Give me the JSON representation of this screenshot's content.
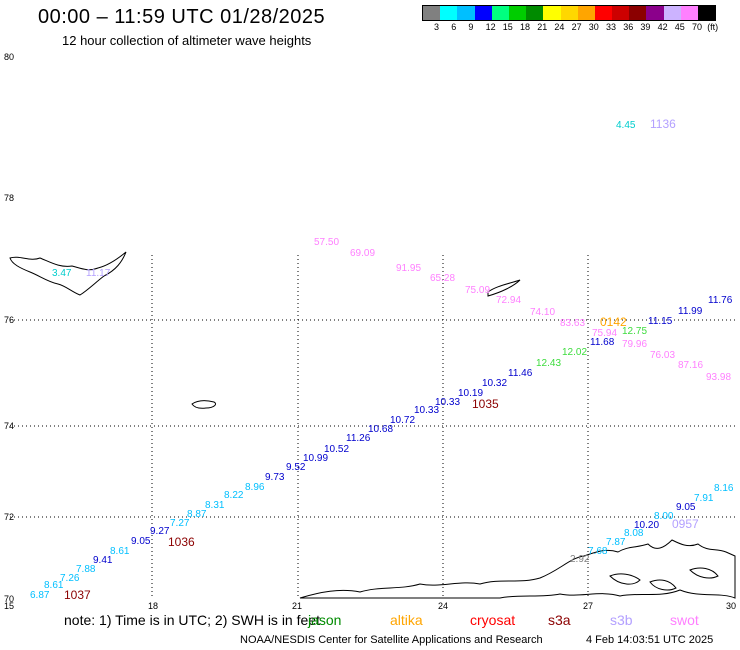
{
  "header": {
    "title": "00:00 – 11:59 UTC 01/28/2025",
    "subtitle": "12 hour collection of altimeter wave heights"
  },
  "legend": {
    "unit": "(ft)",
    "colors": [
      "#808080",
      "#00ffff",
      "#00bfff",
      "#0000ff",
      "#00ff7f",
      "#00cd00",
      "#008b00",
      "#ffff00",
      "#ffd700",
      "#ffa500",
      "#ff0000",
      "#cd0000",
      "#8b0000",
      "#8b008b",
      "#ccb3ff",
      "#ff80ff",
      "#000000"
    ],
    "ticks": [
      "3",
      "6",
      "9",
      "12",
      "15",
      "18",
      "21",
      "24",
      "27",
      "30",
      "33",
      "36",
      "39",
      "42",
      "45",
      "70"
    ]
  },
  "axes": {
    "y_ticks": [
      "80",
      "78",
      "76",
      "74",
      "72",
      "70"
    ],
    "x_ticks": [
      "15",
      "18",
      "21",
      "24",
      "27",
      "30"
    ]
  },
  "tracks": {
    "jason_times": [
      {
        "text": "1037",
        "color": "#8b0000"
      },
      {
        "text": "1036",
        "color": "#8b0000"
      },
      {
        "text": "1035",
        "color": "#8b0000"
      }
    ],
    "jason_values": [
      {
        "text": "6.87",
        "color": "#00bfff"
      },
      {
        "text": "8.61",
        "color": "#00bfff"
      },
      {
        "text": "7.26",
        "color": "#00bfff"
      },
      {
        "text": "7.88",
        "color": "#00bfff"
      },
      {
        "text": "9.41",
        "color": "#0000cd"
      },
      {
        "text": "8.61",
        "color": "#00bfff"
      },
      {
        "text": "9.05",
        "color": "#0000cd"
      },
      {
        "text": "9.27",
        "color": "#0000cd"
      },
      {
        "text": "7.27",
        "color": "#00bfff"
      },
      {
        "text": "8.87",
        "color": "#00bfff"
      },
      {
        "text": "8.31",
        "color": "#00bfff"
      },
      {
        "text": "8.22",
        "color": "#00bfff"
      },
      {
        "text": "8.96",
        "color": "#00bfff"
      },
      {
        "text": "9.73",
        "color": "#0000cd"
      },
      {
        "text": "9.52",
        "color": "#0000cd"
      },
      {
        "text": "10.99",
        "color": "#0000cd"
      },
      {
        "text": "10.52",
        "color": "#0000cd"
      },
      {
        "text": "11.26",
        "color": "#0000cd"
      },
      {
        "text": "10.68",
        "color": "#0000cd"
      },
      {
        "text": "10.72",
        "color": "#0000cd"
      },
      {
        "text": "10.33",
        "color": "#0000cd"
      },
      {
        "text": "10.33",
        "color": "#0000cd"
      },
      {
        "text": "10.19",
        "color": "#0000cd"
      },
      {
        "text": "10.32",
        "color": "#0000cd"
      },
      {
        "text": "11.46",
        "color": "#0000cd"
      },
      {
        "text": "12.43",
        "color": "#3ddc3d"
      },
      {
        "text": "12.02",
        "color": "#3ddc3d"
      },
      {
        "text": "11.68",
        "color": "#0000cd"
      },
      {
        "text": "11.15",
        "color": "#0000cd"
      },
      {
        "text": "11.99",
        "color": "#0000cd"
      },
      {
        "text": "11.76",
        "color": "#0000cd"
      }
    ],
    "swot_values": [
      {
        "text": "57.50",
        "color": "#ff80ff"
      },
      {
        "text": "69.09",
        "color": "#ff80ff"
      },
      {
        "text": "91.95",
        "color": "#ff80ff"
      },
      {
        "text": "65.28",
        "color": "#ff80ff"
      },
      {
        "text": "75.09",
        "color": "#ff80ff"
      },
      {
        "text": "72.94",
        "color": "#ff80ff"
      },
      {
        "text": "74.10",
        "color": "#ff80ff"
      },
      {
        "text": "83.63",
        "color": "#ff80ff"
      },
      {
        "text": "75.94",
        "color": "#ff80ff"
      },
      {
        "text": "12.75",
        "color": "#3ddc3d"
      },
      {
        "text": "79.96",
        "color": "#ff80ff"
      },
      {
        "text": "76.03",
        "color": "#ff80ff"
      },
      {
        "text": "87.16",
        "color": "#ff80ff"
      },
      {
        "text": "93.98",
        "color": "#ff80ff"
      }
    ],
    "altika_time": {
      "text": "0142",
      "color": "#ffa500"
    },
    "lower_values": [
      {
        "text": "2.92",
        "color": "#808080"
      },
      {
        "text": "7.68",
        "color": "#00bfff"
      },
      {
        "text": "7.87",
        "color": "#00bfff"
      },
      {
        "text": "8.08",
        "color": "#00bfff"
      },
      {
        "text": "10.20",
        "color": "#0000cd"
      },
      {
        "text": "8.00",
        "color": "#00bfff"
      },
      {
        "text": "9.05",
        "color": "#0000cd"
      },
      {
        "text": "7.91",
        "color": "#00bfff"
      },
      {
        "text": "8.16",
        "color": "#00bfff"
      }
    ],
    "s3b_time": {
      "text": "0957",
      "color": "#b3a0ff"
    },
    "top_values": [
      {
        "text": "4.45",
        "color": "#00cdcd"
      },
      {
        "text": "1136",
        "color": "#b3a0ff"
      }
    ],
    "left_values": [
      {
        "text": "3.47",
        "color": "#00cdcd"
      },
      {
        "text": "11.17",
        "color": "#b3a0ff"
      }
    ]
  },
  "notes": {
    "note": "note:  1) Time is in UTC; 2) SWH is in feet",
    "satellites": [
      {
        "text": "jason",
        "color": "#008b00"
      },
      {
        "text": "altika",
        "color": "#ffa500"
      },
      {
        "text": "cryosat",
        "color": "#ff0000"
      },
      {
        "text": "s3a",
        "color": "#8b0000"
      },
      {
        "text": "s3b",
        "color": "#b3a0ff"
      },
      {
        "text": "swot",
        "color": "#ff80ff"
      }
    ],
    "credit": "NOAA/NESDIS Center for Satellite Applications and Research",
    "timestamp": "4 Feb 14:03:51 UTC 2025"
  }
}
